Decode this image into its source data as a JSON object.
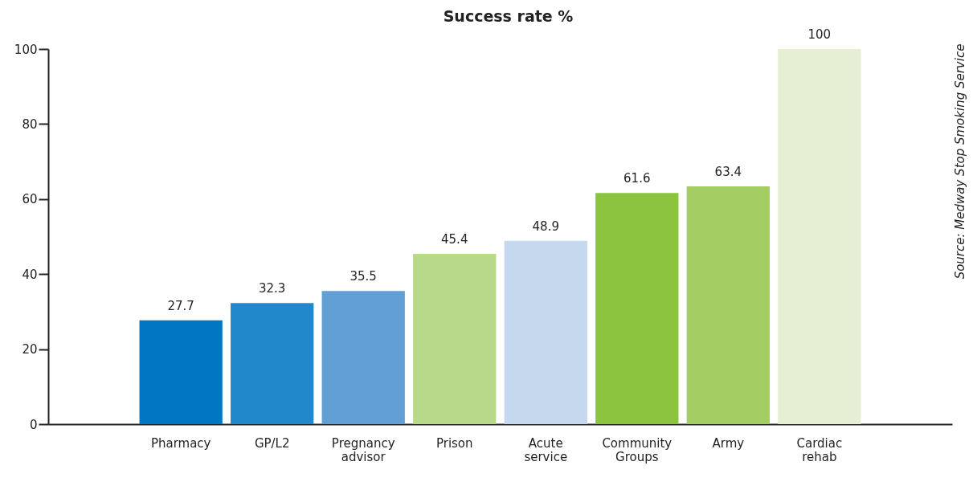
{
  "chart_data": {
    "type": "bar",
    "title": "Success rate %",
    "categories": [
      "Pharmacy",
      "GP/L2",
      "Pregnancy advisor",
      "Prison",
      "Acute service",
      "Community Groups",
      "Army",
      "Cardiac rehab"
    ],
    "values": [
      27.7,
      32.3,
      35.5,
      45.4,
      48.9,
      61.6,
      63.4,
      100
    ],
    "colors": [
      "#0077c0",
      "#2288cc",
      "#619fd5",
      "#b8d98a",
      "#c5d8ee",
      "#8cc43f",
      "#a3cd62",
      "#e4efd4"
    ],
    "ylim": [
      0,
      100
    ],
    "yticks": [
      0,
      20,
      40,
      60,
      80,
      100
    ],
    "data_labels": true,
    "grid": false,
    "annotations": [
      "Source:  Medway Stop Smoking Service"
    ]
  }
}
